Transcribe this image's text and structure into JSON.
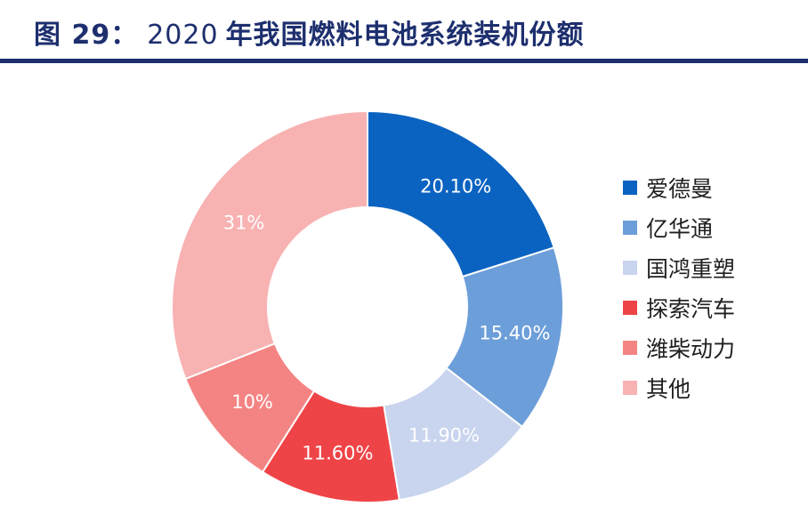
{
  "header": {
    "figure_label": "图 29：",
    "year": "2020",
    "title_rest": "年我国燃料电池系统装机份额"
  },
  "chart_data": {
    "type": "pie",
    "title": "2020 年我国燃料电池系统装机份额",
    "donut": true,
    "legend_position": "right",
    "categories": [
      "爱德曼",
      "亿华通",
      "国鸿重塑",
      "探索汽车",
      "潍柴动力",
      "其他"
    ],
    "values": [
      20.1,
      15.4,
      11.9,
      11.6,
      10,
      31
    ],
    "labels": [
      "20.10%",
      "15.40%",
      "11.90%",
      "11.60%",
      "10%",
      "31%"
    ],
    "colors": [
      "#0b63c1",
      "#6c9ed9",
      "#c9d4ee",
      "#ef4447",
      "#f48483",
      "#f8b2b2"
    ],
    "label_colors": [
      "#ffffff",
      "#ffffff",
      "#ffffff",
      "#ffffff",
      "#ffffff",
      "#ffffff"
    ]
  }
}
